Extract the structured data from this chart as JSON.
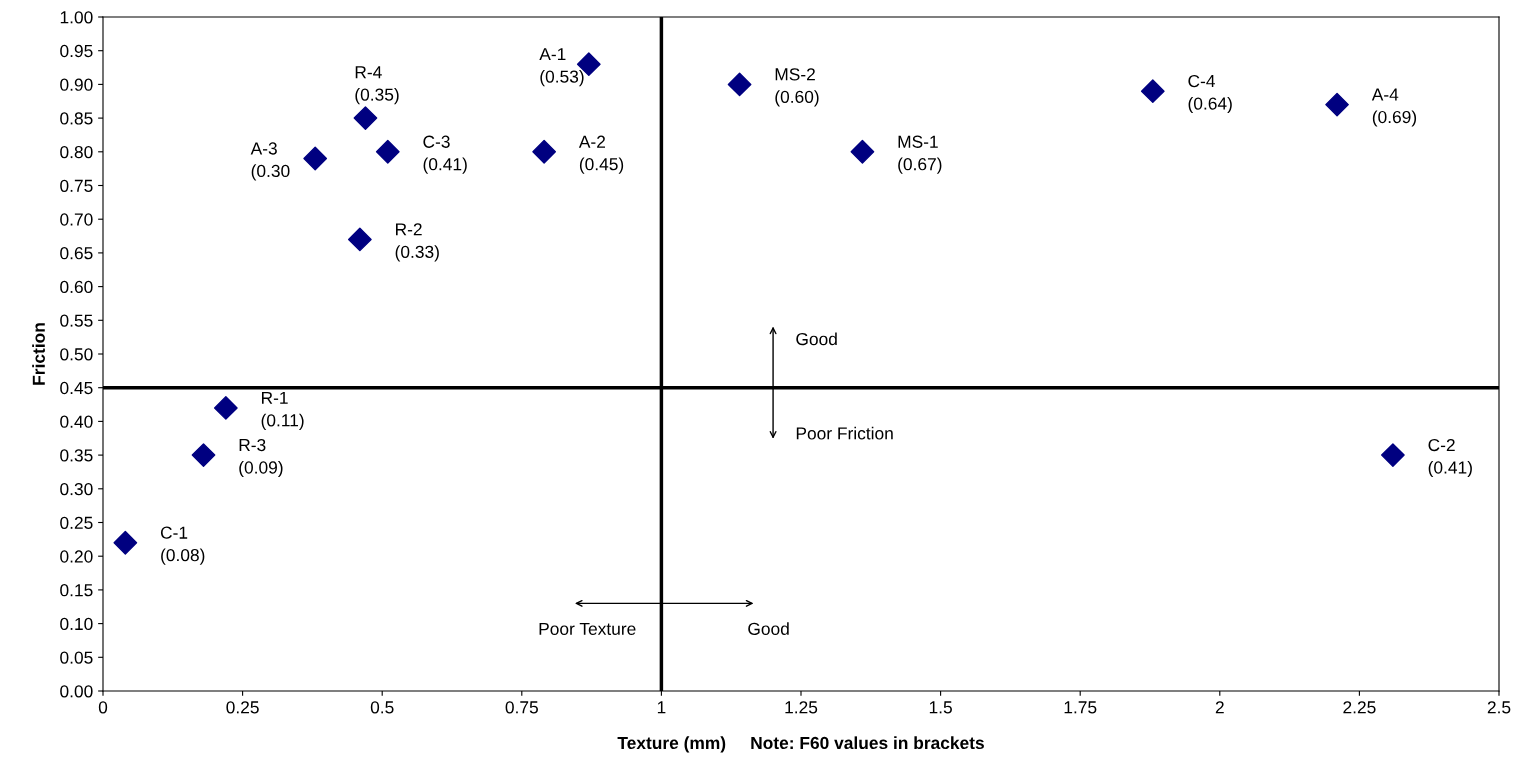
{
  "chart_data": {
    "type": "scatter",
    "xlabel": "Texture (mm)     Note: F60 values in brackets",
    "ylabel": "Friction",
    "x": [
      0.04,
      0.18,
      0.22,
      0.38,
      0.46,
      0.47,
      0.51,
      0.79,
      0.87,
      1.14,
      1.36,
      1.88,
      2.21,
      2.31
    ],
    "series": [
      {
        "color": "#000080",
        "values": [
          0.22,
          0.35,
          0.42,
          0.79,
          0.67,
          0.85,
          0.8,
          0.8,
          0.93,
          0.9,
          0.8,
          0.89,
          0.87,
          0.35
        ]
      }
    ],
    "marker": "diamond",
    "grid": false,
    "legend": false,
    "xlim": [
      0,
      2.5
    ],
    "ylim": [
      0,
      1
    ],
    "xticks": [
      0,
      0.25,
      0.5,
      0.75,
      1,
      1.25,
      1.5,
      1.75,
      2,
      2.25,
      2.5
    ],
    "yticks": [
      {
        "value": 0,
        "label": "0.00"
      },
      {
        "value": 0.05,
        "label": "0.05"
      },
      {
        "value": 0.1,
        "label": "0.10"
      },
      {
        "value": 0.15,
        "label": "0.15"
      },
      {
        "value": 0.2,
        "label": "0.20"
      },
      {
        "value": 0.25,
        "label": "0.25"
      },
      {
        "value": 0.3,
        "label": "0.30"
      },
      {
        "value": 0.35,
        "label": "0.35"
      },
      {
        "value": 0.4,
        "label": "0.40"
      },
      {
        "value": 0.45,
        "label": "0.45"
      },
      {
        "value": 0.5,
        "label": "0.50"
      },
      {
        "value": 0.55,
        "label": "0.55"
      },
      {
        "value": 0.6,
        "label": "0.60"
      },
      {
        "value": 0.65,
        "label": "0.65"
      },
      {
        "value": 0.7,
        "label": "0.70"
      },
      {
        "value": 0.75,
        "label": "0.75"
      },
      {
        "value": 0.8,
        "label": "0.80"
      },
      {
        "value": 0.85,
        "label": "0.85"
      },
      {
        "value": 0.9,
        "label": "0.90"
      },
      {
        "value": 0.95,
        "label": "0.95"
      },
      {
        "value": 1,
        "label": "1.00"
      }
    ],
    "ref_lines": [
      {
        "axis": "x",
        "value": 1,
        "color": "#000000"
      },
      {
        "axis": "y",
        "value": 0.45,
        "color": "#000000"
      }
    ],
    "annotations": [
      {
        "text": "C-1\n(0.08)",
        "x": 0.04,
        "y": 0.22
      },
      {
        "text": "R-3\n(0.09)",
        "x": 0.18,
        "y": 0.35
      },
      {
        "text": "R-1\n(0.11)",
        "x": 0.22,
        "y": 0.42
      },
      {
        "text": "A-3\n(0.30",
        "x": 0.38,
        "y": 0.79
      },
      {
        "text": "R-2\n(0.33)",
        "x": 0.46,
        "y": 0.67
      },
      {
        "text": "R-4\n(0.35)",
        "x": 0.47,
        "y": 0.85
      },
      {
        "text": "C-3\n(0.41)",
        "x": 0.51,
        "y": 0.8
      },
      {
        "text": "A-2\n(0.45)",
        "x": 0.79,
        "y": 0.8
      },
      {
        "text": "A-1\n(0.53)",
        "x": 0.87,
        "y": 0.93
      },
      {
        "text": "MS-2\n(0.60)",
        "x": 1.14,
        "y": 0.9
      },
      {
        "text": "MS-1\n(0.67)",
        "x": 1.36,
        "y": 0.8
      },
      {
        "text": "C-4\n(0.64)",
        "x": 1.88,
        "y": 0.89
      },
      {
        "text": "A-4\n(0.69)",
        "x": 2.21,
        "y": 0.87
      },
      {
        "text": "C-2\n(0.41)",
        "x": 2.31,
        "y": 0.35
      },
      "Good",
      "Poor Friction",
      "Poor Texture",
      "Good"
    ]
  }
}
